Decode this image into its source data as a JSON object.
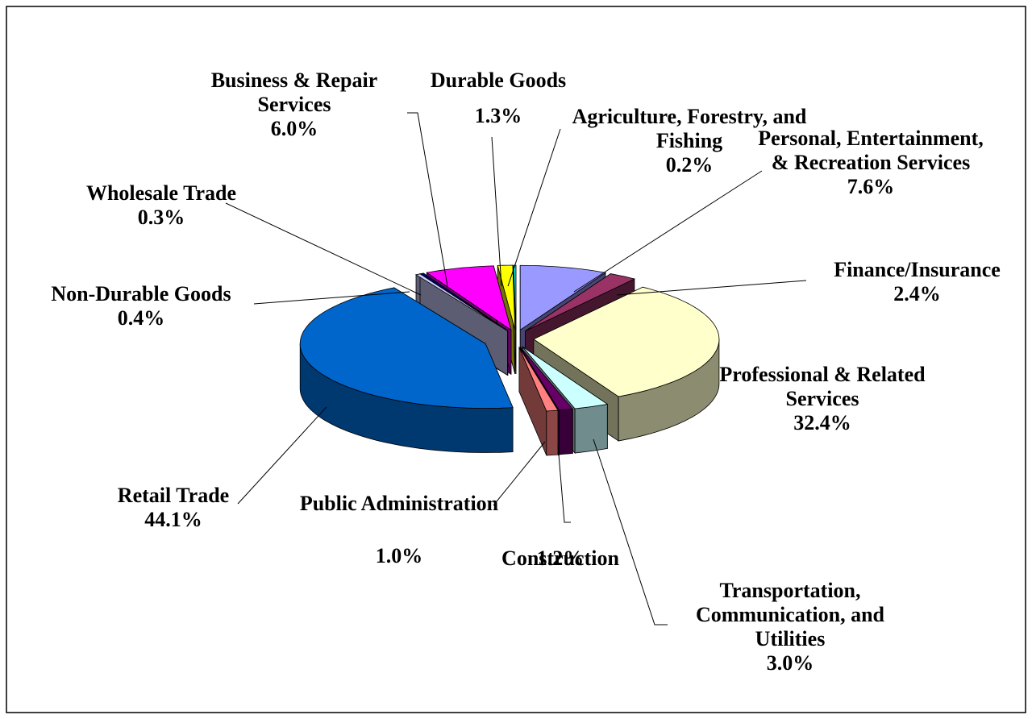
{
  "chart_data": {
    "type": "pie3d",
    "categories": [
      "Personal, Entertainment, & Recreation Services",
      "Finance/Insurance",
      "Professional & Related Services",
      "Transportation, Communication, and Utilities",
      "Construction",
      "Public Administration",
      "Retail Trade",
      "Non-Durable Goods",
      "Wholesale Trade",
      "Business & Repair Services",
      "Durable Goods",
      "Agriculture, Forestry, and Fishing"
    ],
    "values": [
      7.6,
      2.4,
      32.4,
      3.0,
      1.2,
      1.0,
      44.1,
      0.4,
      0.3,
      6.0,
      1.3,
      0.2
    ],
    "value_labels": [
      "7.6%",
      "2.4%",
      "32.4%",
      "3.0%",
      "1.2%",
      "1.0%",
      "44.1%",
      "0.4%",
      "0.3%",
      "6.0%",
      "1.3%",
      "0.2%"
    ],
    "colors": [
      "#9999ff",
      "#993366",
      "#ffffcc",
      "#ccffff",
      "#660066",
      "#ff8080",
      "#0066cc",
      "#ccccff",
      "#000080",
      "#ff00ff",
      "#ffff00",
      "#00ffff"
    ]
  }
}
